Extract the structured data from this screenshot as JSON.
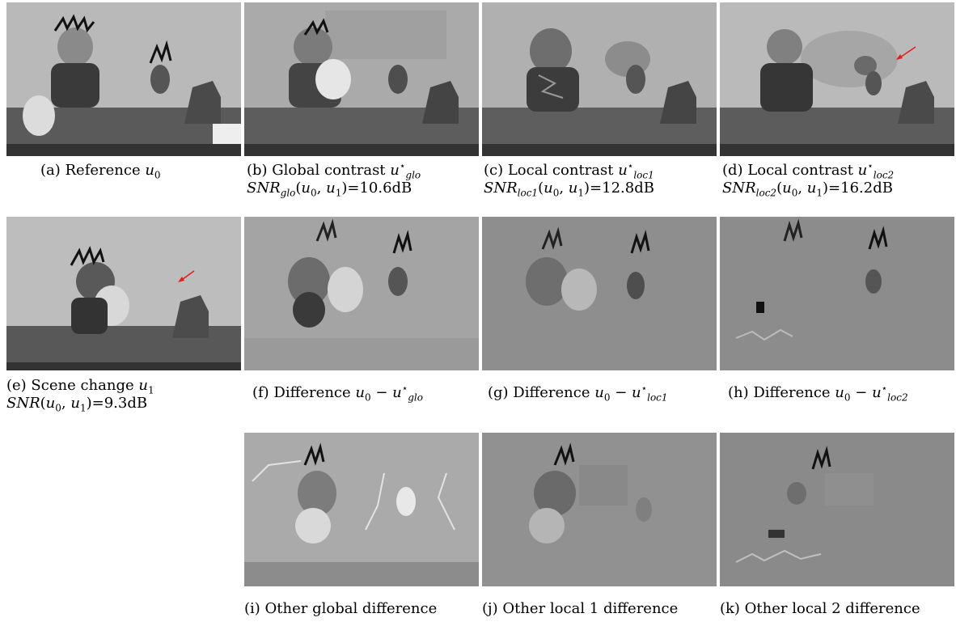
{
  "figure": {
    "panels": [
      {
        "id": "a",
        "caption_text": "(a) Reference ",
        "math": "u0",
        "kind": "photo-gray"
      },
      {
        "id": "b",
        "caption_text": "(b) Global contrast ",
        "math": "u*glo",
        "snr_line": "SNRglo(u0, u1)=10.6dB",
        "kind": "photo-flat"
      },
      {
        "id": "c",
        "caption_text": "(c) Local contrast ",
        "math": "u*loc1",
        "snr_line": "SNRloc1(u0, u1)=12.8dB",
        "kind": "photo-flat"
      },
      {
        "id": "d",
        "caption_text": "(d) Local contrast ",
        "math": "u*loc2",
        "snr_line": "SNRloc2(u0, u1)=16.2dB",
        "kind": "photo-flat-arrow"
      },
      {
        "id": "e",
        "caption_text": "(e) Scene change ",
        "math": "u1",
        "snr_line": "SNR(u0, u1)=9.3dB",
        "kind": "photo-gray-arrow"
      },
      {
        "id": "f",
        "caption_text": "(f) Difference ",
        "math": "u0 − u*glo",
        "kind": "difference"
      },
      {
        "id": "g",
        "caption_text": "(g) Difference ",
        "math": "u0 − u*loc1",
        "kind": "difference"
      },
      {
        "id": "h",
        "caption_text": "(h) Difference ",
        "math": "u0 − u*loc2",
        "kind": "difference"
      },
      {
        "id": "i",
        "caption_text": "(i) Other global difference",
        "kind": "difference"
      },
      {
        "id": "j",
        "caption_text": "(j) Other local 1 difference",
        "kind": "difference"
      },
      {
        "id": "k",
        "caption_text": "(k) Other local 2 difference",
        "kind": "difference"
      }
    ],
    "annotation_color": "#e0201c"
  }
}
